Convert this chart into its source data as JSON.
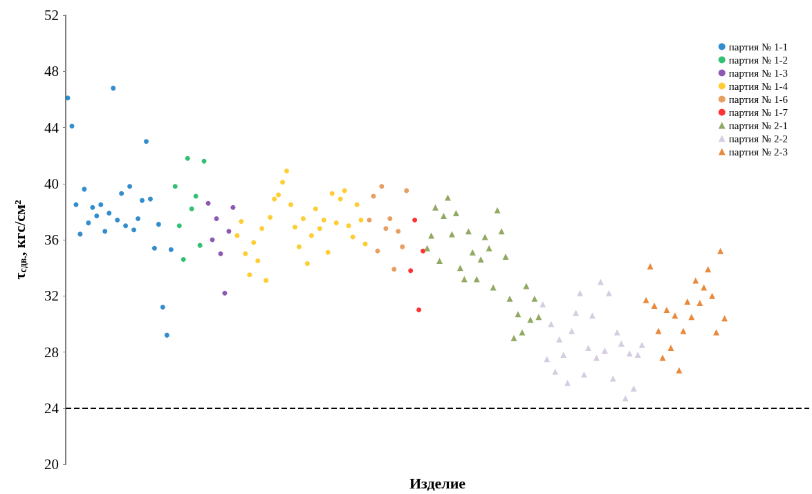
{
  "chart_data": {
    "type": "scatter",
    "ylabel": "τ$_{сдв.}$, кгс/см²",
    "xlabel": "Изделие",
    "categories": [
      null,
      null,
      null,
      null,
      null,
      null,
      null,
      null,
      null,
      null,
      null,
      null,
      null,
      null,
      null,
      null,
      null,
      null,
      null,
      null,
      null,
      null,
      null,
      null,
      null,
      null,
      null,
      null,
      null,
      null,
      null,
      null,
      null,
      null,
      null,
      null,
      null,
      null,
      null,
      null,
      null,
      null,
      null,
      null,
      null,
      null,
      null,
      null,
      null,
      null,
      null,
      null,
      null,
      null,
      null,
      null,
      null,
      null,
      null,
      null,
      null,
      null,
      null,
      null,
      null,
      null,
      null,
      null,
      null,
      null,
      null,
      null,
      null,
      null,
      null,
      null,
      null,
      null,
      null,
      null,
      null,
      null,
      null,
      null,
      null,
      null,
      null,
      null,
      null,
      null,
      null,
      null,
      null,
      null,
      null,
      null,
      null,
      null,
      null,
      null,
      null,
      null,
      null,
      null,
      null,
      null,
      null,
      null,
      null,
      null,
      null,
      null,
      null,
      null,
      null,
      null,
      null,
      null,
      null,
      null,
      null,
      null,
      null,
      null,
      null,
      null,
      null,
      null,
      null,
      null,
      null,
      null,
      null,
      null,
      null,
      null,
      null,
      null,
      null,
      null,
      null,
      null,
      null,
      null,
      null,
      null,
      null,
      null,
      null,
      null,
      null,
      null,
      null,
      null,
      null,
      null,
      null,
      null,
      null,
      null,
      null,
      null,
      null,
      null,
      null,
      null,
      null,
      null,
      null,
      null,
      null,
      null,
      null,
      null,
      null,
      null,
      null,
      null,
      null,
      null
    ],
    "ylim": [
      20,
      52
    ],
    "yticks": [
      20,
      24,
      28,
      32,
      36,
      40,
      44,
      48,
      52
    ],
    "tick_labels": "y",
    "grid": false,
    "legend": "top right",
    "ref_lines": [
      {
        "axis": "y",
        "value": 24,
        "color": "#000000",
        "line_style": "dashed"
      }
    ],
    "series": [
      {
        "name": "партия № 1-1",
        "color": "#0070c0",
        "marker": "circle",
        "values": [
          46.1,
          44.1,
          38.5,
          36.4,
          39.6,
          37.2,
          38.3,
          37.7,
          38.5,
          36.6,
          37.9,
          46.8,
          37.4,
          39.3,
          37.0,
          39.8,
          36.7,
          37.5,
          38.8,
          43.0,
          38.9,
          35.4,
          37.1,
          31.2,
          29.2,
          35.3,
          null,
          null,
          null,
          null,
          null,
          null,
          null,
          null,
          null,
          null,
          null,
          null,
          null,
          null,
          null,
          null,
          null,
          null,
          null,
          null,
          null,
          null,
          null,
          null,
          null,
          null,
          null,
          null,
          null,
          null,
          null,
          null,
          null,
          null,
          null,
          null,
          null,
          null,
          null,
          null,
          null,
          null,
          null,
          null,
          null,
          null,
          null,
          null,
          null,
          null,
          null,
          null,
          null,
          null,
          null,
          null,
          null,
          null,
          null,
          null,
          null,
          null,
          null,
          null,
          null,
          null,
          null,
          null,
          null,
          null,
          null,
          null,
          null,
          null,
          null,
          null,
          null,
          null,
          null,
          null,
          null,
          null,
          null,
          null,
          null,
          null,
          null,
          null,
          null,
          null,
          null,
          null,
          null,
          null,
          null,
          null,
          null,
          null,
          null,
          null,
          null,
          null,
          null,
          null,
          null,
          null,
          null,
          null,
          null,
          null,
          null,
          null,
          null,
          null,
          null,
          null,
          null,
          null,
          null,
          null,
          null,
          null,
          null,
          null,
          null,
          null,
          null,
          null,
          null,
          null,
          null,
          null,
          null,
          null,
          null,
          null,
          null,
          null,
          null,
          null,
          null,
          null,
          null,
          null,
          null,
          null,
          null,
          null,
          null,
          null,
          null,
          null,
          null,
          null
        ]
      },
      {
        "name": "партия № 1-2",
        "color": "#00b050",
        "marker": "circle",
        "values": [
          null,
          null,
          null,
          null,
          null,
          null,
          null,
          null,
          null,
          null,
          null,
          null,
          null,
          null,
          null,
          null,
          null,
          null,
          null,
          null,
          null,
          null,
          null,
          null,
          null,
          null,
          39.8,
          37.0,
          34.6,
          41.8,
          38.2,
          39.1,
          35.6,
          41.6,
          null,
          null,
          null,
          null,
          null,
          null,
          null,
          null,
          null,
          null,
          null,
          null,
          null,
          null,
          null,
          null,
          null,
          null,
          null,
          null,
          null,
          null,
          null,
          null,
          null,
          null,
          null,
          null,
          null,
          null,
          null,
          null,
          null,
          null,
          null,
          null,
          null,
          null,
          null,
          null,
          null,
          null,
          null,
          null,
          null,
          null,
          null,
          null,
          null,
          null,
          null,
          null,
          null,
          null,
          null,
          null,
          null,
          null,
          null,
          null,
          null,
          null,
          null,
          null,
          null,
          null,
          null,
          null,
          null,
          null,
          null,
          null,
          null,
          null,
          null,
          null,
          null,
          null,
          null,
          null,
          null,
          null,
          null,
          null,
          null,
          null,
          null,
          null,
          null,
          null,
          null,
          null,
          null,
          null,
          null,
          null,
          null,
          null,
          null,
          null,
          null,
          null,
          null,
          null,
          null,
          null,
          null,
          null,
          null,
          null,
          null,
          null,
          null,
          null,
          null,
          null,
          null,
          null,
          null,
          null,
          null,
          null,
          null,
          null,
          null,
          null,
          null,
          null,
          null,
          null,
          null,
          null,
          null,
          null,
          null,
          null,
          null,
          null,
          null,
          null,
          null,
          null,
          null,
          null,
          null,
          null
        ]
      },
      {
        "name": "партия № 1-3",
        "color": "#7030a0",
        "marker": "circle",
        "values": [
          null,
          null,
          null,
          null,
          null,
          null,
          null,
          null,
          null,
          null,
          null,
          null,
          null,
          null,
          null,
          null,
          null,
          null,
          null,
          null,
          null,
          null,
          null,
          null,
          null,
          null,
          null,
          null,
          null,
          null,
          null,
          null,
          null,
          null,
          38.6,
          36.0,
          37.5,
          35.0,
          32.2,
          36.6,
          38.3,
          null,
          null,
          null,
          null,
          null,
          null,
          null,
          null,
          null,
          null,
          null,
          null,
          null,
          null,
          null,
          null,
          null,
          null,
          null,
          null,
          null,
          null,
          null,
          null,
          null,
          null,
          null,
          null,
          null,
          null,
          null,
          null,
          null,
          null,
          null,
          null,
          null,
          null,
          null,
          null,
          null,
          null,
          null,
          null,
          null,
          null,
          null,
          null,
          null,
          null,
          null,
          null,
          null,
          null,
          null,
          null,
          null,
          null,
          null,
          null,
          null,
          null,
          null,
          null,
          null,
          null,
          null,
          null,
          null,
          null,
          null,
          null,
          null,
          null,
          null,
          null,
          null,
          null,
          null,
          null,
          null,
          null,
          null,
          null,
          null,
          null,
          null,
          null,
          null,
          null,
          null,
          null,
          null,
          null,
          null,
          null,
          null,
          null,
          null,
          null,
          null,
          null,
          null,
          null,
          null,
          null,
          null,
          null,
          null,
          null,
          null,
          null,
          null,
          null,
          null,
          null,
          null,
          null,
          null,
          null,
          null,
          null,
          null,
          null,
          null,
          null,
          null,
          null,
          null,
          null,
          null,
          null,
          null,
          null,
          null,
          null,
          null,
          null,
          null
        ]
      },
      {
        "name": "партия № 1-4",
        "color": "#ffc000",
        "marker": "circle",
        "values": [
          null,
          null,
          null,
          null,
          null,
          null,
          null,
          null,
          null,
          null,
          null,
          null,
          null,
          null,
          null,
          null,
          null,
          null,
          null,
          null,
          null,
          null,
          null,
          null,
          null,
          null,
          null,
          null,
          null,
          null,
          null,
          null,
          null,
          null,
          null,
          null,
          null,
          null,
          null,
          null,
          null,
          36.3,
          37.3,
          35.0,
          33.5,
          35.8,
          34.5,
          36.8,
          33.1,
          37.6,
          38.9,
          39.2,
          40.1,
          40.9,
          38.5,
          36.9,
          35.5,
          37.5,
          34.3,
          36.3,
          38.2,
          36.8,
          37.4,
          35.1,
          39.3,
          37.2,
          38.9,
          39.5,
          37.0,
          36.2,
          38.5,
          37.4,
          35.7,
          null,
          null,
          null,
          null,
          null,
          null,
          null,
          null,
          null,
          null,
          null,
          null,
          null,
          null,
          null,
          null,
          null,
          null,
          null,
          null,
          null,
          null,
          null,
          null,
          null,
          null,
          null,
          null,
          null,
          null,
          null,
          null,
          null,
          null,
          null,
          null,
          null,
          null,
          null,
          null,
          null,
          null,
          null,
          null,
          null,
          null,
          null,
          null,
          null,
          null,
          null,
          null,
          null,
          null,
          null,
          null,
          null,
          null,
          null,
          null,
          null,
          null,
          null,
          null,
          null,
          null,
          null,
          null,
          null,
          null,
          null,
          null,
          null,
          null,
          null,
          null,
          null,
          null,
          null,
          null,
          null,
          null,
          null,
          null,
          null,
          null,
          null,
          null,
          null,
          null,
          null,
          null,
          null,
          null,
          null,
          null,
          null,
          null,
          null,
          null,
          null,
          null,
          null,
          null,
          null,
          null,
          null
        ]
      },
      {
        "name": "партия № 1-6",
        "color": "#e0873a",
        "marker": "circle",
        "values": [
          null,
          null,
          null,
          null,
          null,
          null,
          null,
          null,
          null,
          null,
          null,
          null,
          null,
          null,
          null,
          null,
          null,
          null,
          null,
          null,
          null,
          null,
          null,
          null,
          null,
          null,
          null,
          null,
          null,
          null,
          null,
          null,
          null,
          null,
          null,
          null,
          null,
          null,
          null,
          null,
          null,
          null,
          null,
          null,
          null,
          null,
          null,
          null,
          null,
          null,
          null,
          null,
          null,
          null,
          null,
          null,
          null,
          null,
          null,
          null,
          null,
          null,
          null,
          null,
          null,
          null,
          null,
          null,
          null,
          null,
          null,
          null,
          null,
          37.4,
          39.1,
          35.2,
          39.8,
          36.8,
          37.5,
          33.9,
          36.6,
          35.5,
          39.5,
          null,
          null,
          null,
          null,
          null,
          null,
          null,
          null,
          null,
          null,
          null,
          null,
          null,
          null,
          null,
          null,
          null,
          null,
          null,
          null,
          null,
          null,
          null,
          null,
          null,
          null,
          null,
          null,
          null,
          null,
          null,
          null,
          null,
          null,
          null,
          null,
          null,
          null,
          null,
          null,
          null,
          null,
          null,
          null,
          null,
          null,
          null,
          null,
          null,
          null,
          null,
          null,
          null,
          null,
          null,
          null,
          null,
          null,
          null,
          null,
          null,
          null,
          null,
          null,
          null,
          null,
          null,
          null,
          null,
          null,
          null,
          null,
          null,
          null,
          null,
          null,
          null,
          null,
          null,
          null,
          null,
          null,
          null,
          null,
          null,
          null,
          null,
          null,
          null,
          null,
          null,
          null,
          null,
          null,
          null,
          null,
          null
        ]
      },
      {
        "name": "партия № 1-7",
        "color": "#ff0000",
        "marker": "circle",
        "values": [
          null,
          null,
          null,
          null,
          null,
          null,
          null,
          null,
          null,
          null,
          null,
          null,
          null,
          null,
          null,
          null,
          null,
          null,
          null,
          null,
          null,
          null,
          null,
          null,
          null,
          null,
          null,
          null,
          null,
          null,
          null,
          null,
          null,
          null,
          null,
          null,
          null,
          null,
          null,
          null,
          null,
          null,
          null,
          null,
          null,
          null,
          null,
          null,
          null,
          null,
          null,
          null,
          null,
          null,
          null,
          null,
          null,
          null,
          null,
          null,
          null,
          null,
          null,
          null,
          null,
          null,
          null,
          null,
          null,
          null,
          null,
          null,
          null,
          null,
          null,
          null,
          null,
          null,
          null,
          null,
          null,
          null,
          null,
          33.8,
          37.4,
          31.0,
          35.2,
          null,
          null,
          null,
          null,
          null,
          null,
          null,
          null,
          null,
          null,
          null,
          null,
          null,
          null,
          null,
          null,
          null,
          null,
          null,
          null,
          null,
          null,
          null,
          null,
          null,
          null,
          null,
          null,
          null,
          null,
          null,
          null,
          null,
          null,
          null,
          null,
          null,
          null,
          null,
          null,
          null,
          null,
          null,
          null,
          null,
          null,
          null,
          null,
          null,
          null,
          null,
          null,
          null,
          null,
          null,
          null,
          null,
          null,
          null,
          null,
          null,
          null,
          null,
          null,
          null,
          null,
          null,
          null,
          null,
          null,
          null,
          null,
          null,
          null,
          null,
          null,
          null,
          null,
          null,
          null,
          null,
          null,
          null,
          null,
          null,
          null,
          null,
          null,
          null,
          null,
          null,
          null,
          null
        ]
      },
      {
        "name": "партия № 2-1",
        "color": "#77933c",
        "marker": "triangle",
        "values": [
          null,
          null,
          null,
          null,
          null,
          null,
          null,
          null,
          null,
          null,
          null,
          null,
          null,
          null,
          null,
          null,
          null,
          null,
          null,
          null,
          null,
          null,
          null,
          null,
          null,
          null,
          null,
          null,
          null,
          null,
          null,
          null,
          null,
          null,
          null,
          null,
          null,
          null,
          null,
          null,
          null,
          null,
          null,
          null,
          null,
          null,
          null,
          null,
          null,
          null,
          null,
          null,
          null,
          null,
          null,
          null,
          null,
          null,
          null,
          null,
          null,
          null,
          null,
          null,
          null,
          null,
          null,
          null,
          null,
          null,
          null,
          null,
          null,
          null,
          null,
          null,
          null,
          null,
          null,
          null,
          null,
          null,
          null,
          null,
          null,
          null,
          null,
          35.4,
          36.3,
          38.3,
          34.5,
          37.7,
          39.0,
          36.4,
          37.9,
          34.0,
          33.2,
          36.6,
          35.1,
          33.2,
          34.6,
          36.2,
          35.4,
          32.6,
          38.1,
          36.6,
          34.8,
          31.8,
          29.0,
          30.7,
          29.4,
          32.7,
          30.3,
          31.8,
          30.5,
          null,
          null,
          null,
          null,
          null,
          null,
          null,
          null,
          null,
          null,
          null,
          null,
          null,
          null,
          null,
          null,
          null,
          null,
          null,
          null,
          null,
          null,
          null,
          null,
          null,
          null,
          null,
          null,
          null,
          null,
          null,
          null,
          null,
          null,
          null,
          null,
          null,
          null,
          null,
          null,
          null,
          null,
          null,
          null,
          null,
          null,
          null,
          null,
          null,
          null,
          null,
          null,
          null,
          null,
          null,
          null,
          null,
          null,
          null,
          null,
          null,
          null,
          null,
          null,
          null
        ]
      },
      {
        "name": "партия № 2-2",
        "color": "#ccc1da",
        "marker": "triangle",
        "values": [
          null,
          null,
          null,
          null,
          null,
          null,
          null,
          null,
          null,
          null,
          null,
          null,
          null,
          null,
          null,
          null,
          null,
          null,
          null,
          null,
          null,
          null,
          null,
          null,
          null,
          null,
          null,
          null,
          null,
          null,
          null,
          null,
          null,
          null,
          null,
          null,
          null,
          null,
          null,
          null,
          null,
          null,
          null,
          null,
          null,
          null,
          null,
          null,
          null,
          null,
          null,
          null,
          null,
          null,
          null,
          null,
          null,
          null,
          null,
          null,
          null,
          null,
          null,
          null,
          null,
          null,
          null,
          null,
          null,
          null,
          null,
          null,
          null,
          null,
          null,
          null,
          null,
          null,
          null,
          null,
          null,
          null,
          null,
          null,
          null,
          null,
          null,
          null,
          null,
          null,
          null,
          null,
          null,
          null,
          null,
          null,
          null,
          null,
          null,
          null,
          null,
          null,
          null,
          null,
          null,
          null,
          null,
          null,
          null,
          null,
          null,
          null,
          null,
          null,
          null,
          31.4,
          27.5,
          30.0,
          26.6,
          28.9,
          27.8,
          25.8,
          29.5,
          30.8,
          32.2,
          26.4,
          28.3,
          30.6,
          27.6,
          33.0,
          28.1,
          32.2,
          26.1,
          29.4,
          28.6,
          24.7,
          27.9,
          25.4,
          27.8,
          28.5,
          null,
          null,
          null,
          null,
          null,
          null,
          null,
          null,
          null,
          null,
          null,
          null,
          null,
          null,
          null,
          null,
          null,
          null,
          null,
          null,
          null,
          null,
          null,
          null,
          null,
          null,
          null,
          null,
          null,
          null,
          null,
          null,
          null,
          null,
          null,
          null,
          null,
          null,
          null,
          null
        ]
      },
      {
        "name": "партия № 2-3",
        "color": "#e46c0a",
        "marker": "triangle",
        "values": [
          null,
          null,
          null,
          null,
          null,
          null,
          null,
          null,
          null,
          null,
          null,
          null,
          null,
          null,
          null,
          null,
          null,
          null,
          null,
          null,
          null,
          null,
          null,
          null,
          null,
          null,
          null,
          null,
          null,
          null,
          null,
          null,
          null,
          null,
          null,
          null,
          null,
          null,
          null,
          null,
          null,
          null,
          null,
          null,
          null,
          null,
          null,
          null,
          null,
          null,
          null,
          null,
          null,
          null,
          null,
          null,
          null,
          null,
          null,
          null,
          null,
          null,
          null,
          null,
          null,
          null,
          null,
          null,
          null,
          null,
          null,
          null,
          null,
          null,
          null,
          null,
          null,
          null,
          null,
          null,
          null,
          null,
          null,
          null,
          null,
          null,
          null,
          null,
          null,
          null,
          null,
          null,
          null,
          null,
          null,
          null,
          null,
          null,
          null,
          null,
          null,
          null,
          null,
          null,
          null,
          null,
          null,
          null,
          null,
          null,
          null,
          null,
          null,
          null,
          null,
          null,
          null,
          null,
          null,
          null,
          null,
          null,
          null,
          null,
          null,
          null,
          null,
          null,
          null,
          null,
          null,
          null,
          null,
          null,
          null,
          null,
          null,
          null,
          null,
          null,
          31.7,
          34.1,
          31.3,
          29.5,
          27.6,
          31.0,
          28.3,
          30.6,
          26.7,
          29.5,
          31.6,
          30.5,
          33.1,
          31.5,
          32.6,
          33.9,
          32.0,
          29.4,
          35.2,
          30.4,
          null,
          null,
          null,
          null,
          null,
          null,
          null,
          null,
          null,
          null,
          null,
          null,
          null,
          null,
          null,
          null,
          null,
          null,
          null,
          null
        ]
      }
    ]
  }
}
